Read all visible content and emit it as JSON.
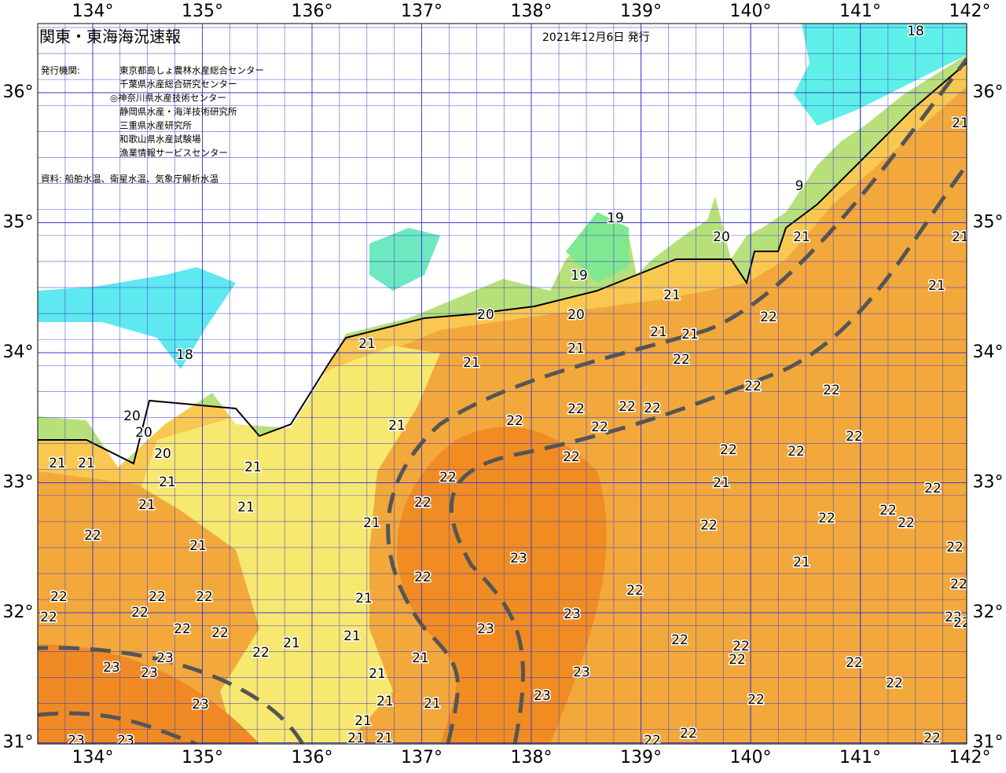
{
  "header": {
    "title": "関東・東海海況速報",
    "date": "2021年12月6日 発行"
  },
  "issuers": {
    "label": "発行機関:",
    "names": [
      "東京都島しょ農林水産総合センター",
      "千葉県水産総合研究センター",
      "◎神奈川県水産技術センター",
      "静岡県水産・海洋技術研究所",
      "三重県水産研究所",
      "和歌山県水産試験場",
      "漁業情報サービスセンター"
    ]
  },
  "source": "資料: 船舶水温、衛星水温、気象庁解析水温",
  "map": {
    "xticks": [
      {
        "value": 134,
        "label": "134°"
      },
      {
        "value": 135,
        "label": "135°"
      },
      {
        "value": 136,
        "label": "136°"
      },
      {
        "value": 137,
        "label": "137°"
      },
      {
        "value": 138,
        "label": "138°"
      },
      {
        "value": 139,
        "label": "139°"
      },
      {
        "value": 140,
        "label": "140°"
      },
      {
        "value": 141,
        "label": "141°"
      },
      {
        "value": 142,
        "label": "142°"
      }
    ],
    "yticks": [
      {
        "value": 36,
        "label": "36°"
      },
      {
        "value": 35,
        "label": "35°"
      },
      {
        "value": 34,
        "label": "34°"
      },
      {
        "value": 33,
        "label": "33°"
      },
      {
        "value": 32,
        "label": "32°"
      },
      {
        "value": 31,
        "label": "31°"
      }
    ],
    "contour_labels": [
      18,
      21,
      9,
      19,
      20,
      21,
      21,
      19,
      21,
      21,
      20,
      20,
      22,
      21,
      21,
      21,
      21,
      18,
      22,
      21,
      22,
      22,
      22,
      22,
      22,
      22,
      20,
      20,
      21,
      22,
      22,
      22,
      22,
      20,
      22,
      21,
      21,
      21,
      22,
      21,
      21,
      22,
      22,
      21,
      21,
      22,
      22,
      22,
      21,
      22,
      22,
      21,
      22,
      23,
      21,
      22,
      22,
      22,
      22,
      22,
      22,
      21,
      22,
      23,
      22,
      22,
      22,
      22,
      23,
      22,
      21,
      21,
      22,
      22,
      22,
      23,
      21,
      22,
      22,
      23,
      23,
      21,
      23,
      22,
      23,
      22,
      21,
      21,
      23,
      21,
      22,
      21,
      21,
      23,
      23,
      22,
      22
    ]
  }
}
